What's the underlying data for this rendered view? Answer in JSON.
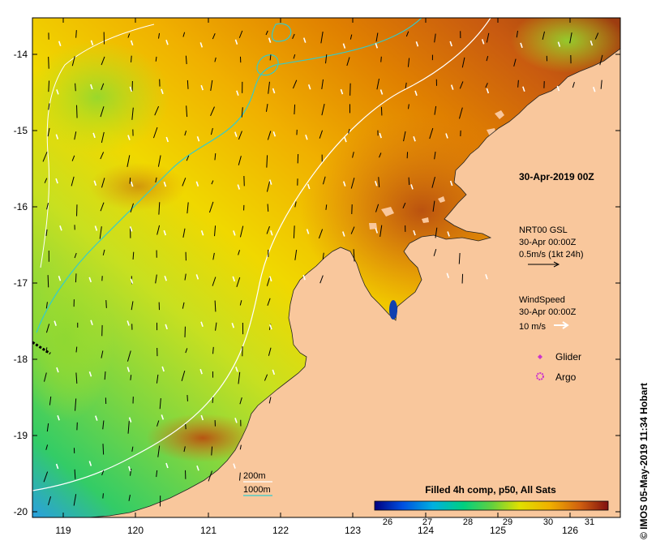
{
  "date_label": "30-Apr-2019 00Z",
  "currents_legend": {
    "title": "NRT00 GSL",
    "time": "30-Apr 00:00Z",
    "scale": "0.5m/s (1kt 24h)"
  },
  "wind_legend": {
    "title": "WindSpeed",
    "time": "30-Apr 00:00Z",
    "scale": "10 m/s"
  },
  "markers": {
    "glider": "Glider",
    "argo": "Argo"
  },
  "contours": {
    "c200": "200m",
    "c1000": "1000m"
  },
  "colorbar": {
    "title": "Filled 4h comp, p50, All Sats",
    "ticks": [
      "26",
      "27",
      "28",
      "29",
      "30",
      "31"
    ]
  },
  "credit": "© IMOS 05-May-2019 11:34 Hobart",
  "axes": {
    "lat_ticks": [
      "-14",
      "-15",
      "-16",
      "-17",
      "-18",
      "-19",
      "-20"
    ],
    "lon_ticks": [
      "119",
      "120",
      "121",
      "122",
      "123",
      "124",
      "125",
      "126"
    ]
  },
  "colors": {
    "land": "#f9c79c",
    "contour_200": "#ffffff",
    "contour_1000": "#33cccc",
    "glider": "#cc33cc",
    "argo": "#cc33cc"
  }
}
